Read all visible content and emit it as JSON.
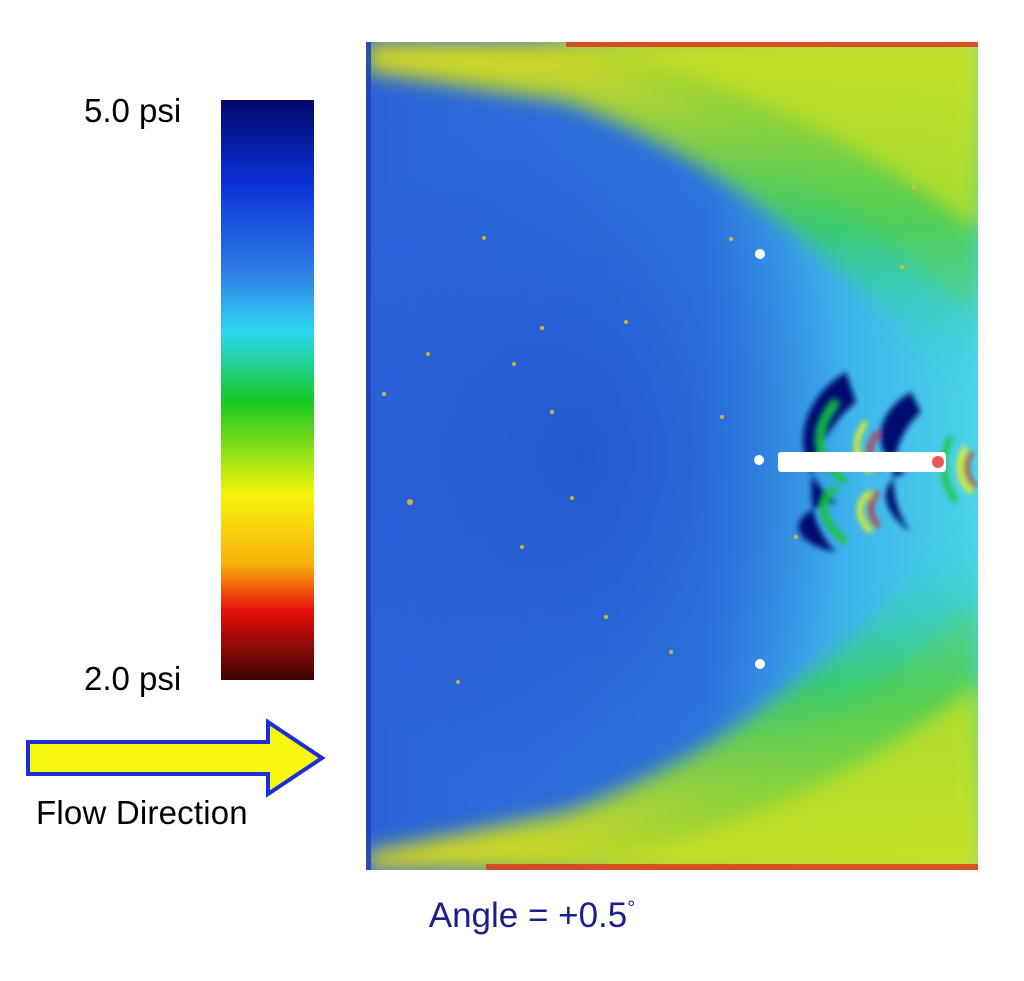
{
  "colorbar": {
    "max_label": "5.0 psi",
    "min_label": "2.0 psi",
    "colors_top_to_bottom": [
      "#04086a",
      "#0a2fd6",
      "#2f80e8",
      "#2cd7f0",
      "#16c824",
      "#f5f50a",
      "#f7b00c",
      "#e8100c",
      "#3a0404"
    ]
  },
  "flow": {
    "label": "Flow Direction",
    "arrow_fill": "#f7f70f",
    "arrow_stroke": "#1b2fd6"
  },
  "caption": {
    "angle_text": "Angle  =  +0.5",
    "degree_symbol": "°"
  },
  "chart_data": {
    "type": "heatmap",
    "title": "",
    "colorbar_range": [
      2.0,
      5.0
    ],
    "colorbar_units": "psi",
    "annotations": [
      "Flow Direction",
      "Angle  =  +0.5°"
    ]
  }
}
